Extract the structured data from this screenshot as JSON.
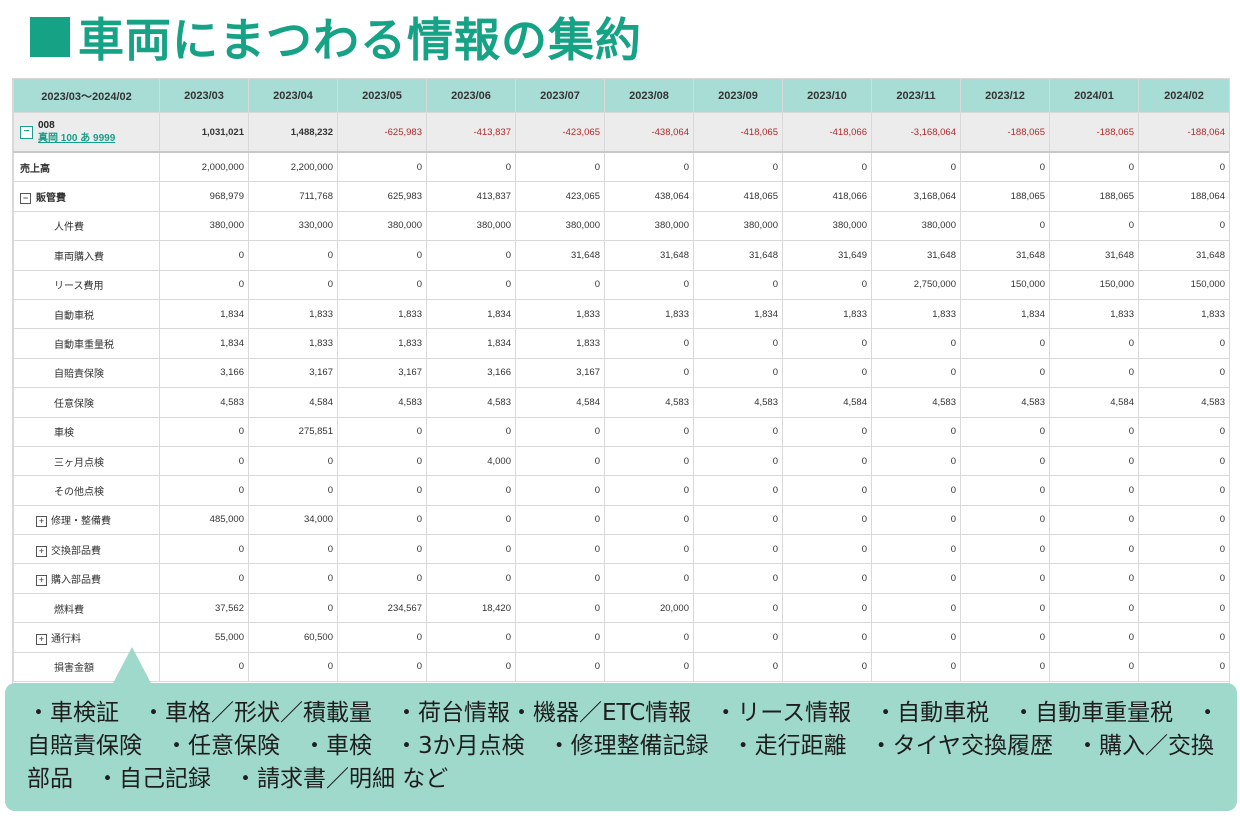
{
  "slide_title": "車両にまつわる情報の集約",
  "table": {
    "period_header": "2023/03〜2024/02",
    "months": [
      "2023/03",
      "2023/04",
      "2023/05",
      "2023/06",
      "2023/07",
      "2023/08",
      "2023/09",
      "2023/10",
      "2023/11",
      "2023/12",
      "2024/01",
      "2024/02"
    ],
    "vehicle": {
      "code": "008",
      "plate": "真岡 100 あ 9999",
      "values": [
        "1,031,021",
        "1,488,232",
        "-625,983",
        "-413,837",
        "-423,065",
        "-438,064",
        "-418,065",
        "-418,066",
        "-3,168,064",
        "-188,065",
        "-188,065",
        "-188,064"
      ]
    },
    "rows": [
      {
        "label": "売上高",
        "indent": 0,
        "bold": true,
        "toggle": "none",
        "values": [
          "2,000,000",
          "2,200,000",
          "0",
          "0",
          "0",
          "0",
          "0",
          "0",
          "0",
          "0",
          "0",
          "0"
        ]
      },
      {
        "label": "販管費",
        "indent": 0,
        "bold": true,
        "toggle": "collapse",
        "values": [
          "968,979",
          "711,768",
          "625,983",
          "413,837",
          "423,065",
          "438,064",
          "418,065",
          "418,066",
          "3,168,064",
          "188,065",
          "188,065",
          "188,064"
        ]
      },
      {
        "label": "人件費",
        "indent": 2,
        "bold": false,
        "toggle": "none",
        "values": [
          "380,000",
          "330,000",
          "380,000",
          "380,000",
          "380,000",
          "380,000",
          "380,000",
          "380,000",
          "380,000",
          "0",
          "0",
          "0"
        ]
      },
      {
        "label": "車両購入費",
        "indent": 2,
        "bold": false,
        "toggle": "none",
        "values": [
          "0",
          "0",
          "0",
          "0",
          "31,648",
          "31,648",
          "31,648",
          "31,649",
          "31,648",
          "31,648",
          "31,648",
          "31,648"
        ]
      },
      {
        "label": "リース費用",
        "indent": 2,
        "bold": false,
        "toggle": "none",
        "values": [
          "0",
          "0",
          "0",
          "0",
          "0",
          "0",
          "0",
          "0",
          "2,750,000",
          "150,000",
          "150,000",
          "150,000"
        ]
      },
      {
        "label": "自動車税",
        "indent": 2,
        "bold": false,
        "toggle": "none",
        "values": [
          "1,834",
          "1,833",
          "1,833",
          "1,834",
          "1,833",
          "1,833",
          "1,834",
          "1,833",
          "1,833",
          "1,834",
          "1,833",
          "1,833"
        ]
      },
      {
        "label": "自動車重量税",
        "indent": 2,
        "bold": false,
        "toggle": "none",
        "values": [
          "1,834",
          "1,833",
          "1,833",
          "1,834",
          "1,833",
          "0",
          "0",
          "0",
          "0",
          "0",
          "0",
          "0"
        ]
      },
      {
        "label": "自賠責保険",
        "indent": 2,
        "bold": false,
        "toggle": "none",
        "values": [
          "3,166",
          "3,167",
          "3,167",
          "3,166",
          "3,167",
          "0",
          "0",
          "0",
          "0",
          "0",
          "0",
          "0"
        ]
      },
      {
        "label": "任意保険",
        "indent": 2,
        "bold": false,
        "toggle": "none",
        "values": [
          "4,583",
          "4,584",
          "4,583",
          "4,583",
          "4,584",
          "4,583",
          "4,583",
          "4,584",
          "4,583",
          "4,583",
          "4,584",
          "4,583"
        ]
      },
      {
        "label": "車検",
        "indent": 2,
        "bold": false,
        "toggle": "none",
        "values": [
          "0",
          "275,851",
          "0",
          "0",
          "0",
          "0",
          "0",
          "0",
          "0",
          "0",
          "0",
          "0"
        ]
      },
      {
        "label": "三ヶ月点検",
        "indent": 2,
        "bold": false,
        "toggle": "none",
        "values": [
          "0",
          "0",
          "0",
          "4,000",
          "0",
          "0",
          "0",
          "0",
          "0",
          "0",
          "0",
          "0"
        ]
      },
      {
        "label": "その他点検",
        "indent": 2,
        "bold": false,
        "toggle": "none",
        "values": [
          "0",
          "0",
          "0",
          "0",
          "0",
          "0",
          "0",
          "0",
          "0",
          "0",
          "0",
          "0"
        ]
      },
      {
        "label": "修理・整備費",
        "indent": 1,
        "bold": false,
        "toggle": "expand",
        "values": [
          "485,000",
          "34,000",
          "0",
          "0",
          "0",
          "0",
          "0",
          "0",
          "0",
          "0",
          "0",
          "0"
        ]
      },
      {
        "label": "交換部品費",
        "indent": 1,
        "bold": false,
        "toggle": "expand",
        "values": [
          "0",
          "0",
          "0",
          "0",
          "0",
          "0",
          "0",
          "0",
          "0",
          "0",
          "0",
          "0"
        ]
      },
      {
        "label": "購入部品費",
        "indent": 1,
        "bold": false,
        "toggle": "expand",
        "values": [
          "0",
          "0",
          "0",
          "0",
          "0",
          "0",
          "0",
          "0",
          "0",
          "0",
          "0",
          "0"
        ]
      },
      {
        "label": "燃料費",
        "indent": 2,
        "bold": false,
        "toggle": "none",
        "values": [
          "37,562",
          "0",
          "234,567",
          "18,420",
          "0",
          "20,000",
          "0",
          "0",
          "0",
          "0",
          "0",
          "0"
        ]
      },
      {
        "label": "通行料",
        "indent": 1,
        "bold": false,
        "toggle": "expand",
        "values": [
          "55,000",
          "60,500",
          "0",
          "0",
          "0",
          "0",
          "0",
          "0",
          "0",
          "0",
          "0",
          "0"
        ]
      },
      {
        "label": "損害金額",
        "indent": 2,
        "bold": false,
        "toggle": "none",
        "values": [
          "0",
          "0",
          "0",
          "0",
          "0",
          "0",
          "0",
          "0",
          "0",
          "0",
          "0",
          "0"
        ]
      }
    ]
  },
  "callout": {
    "text": "・車検証　・車格／形状／積載量　・荷台情報・機器／ETC情報　・リース情報　・自動車税　・自動車重量税　・自賠責保険　・任意保険　・車検　・3か月点検　・修理整備記録　・走行距離　・タイヤ交換履歴　・購入／交換部品　・自己記録　・請求書／明細 など"
  },
  "colors": {
    "title": "#16a285",
    "header_bg": "#a8ddd6",
    "callout_bg": "#9ed9cc",
    "negative": "#b02a2a",
    "link": "#1a9e8a"
  },
  "icons": {
    "collapse": "minus-box-icon",
    "expand": "plus-box-icon"
  }
}
